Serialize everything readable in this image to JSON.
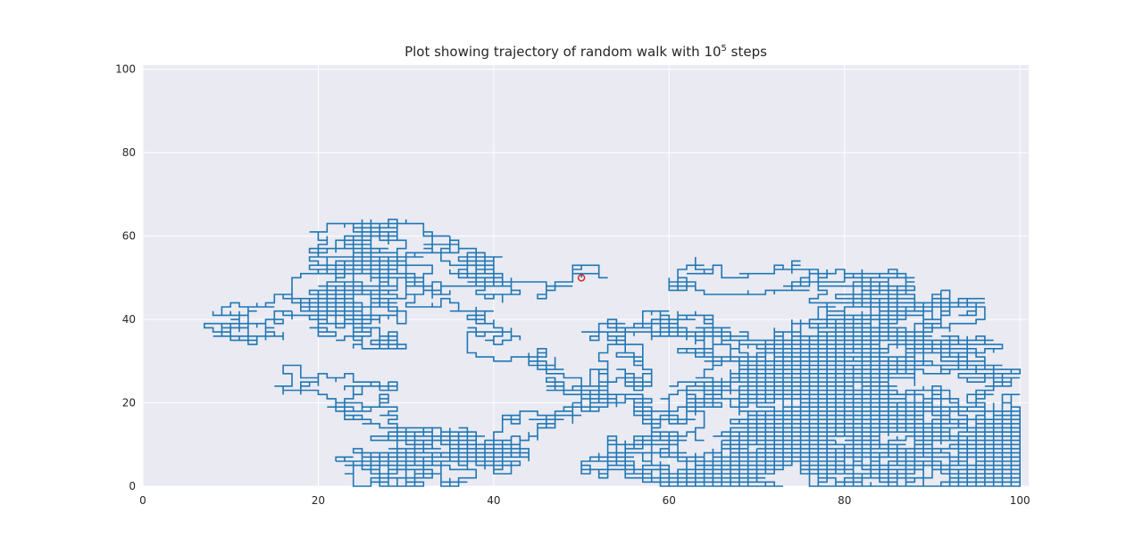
{
  "chart_data": {
    "type": "line",
    "title_prefix": "Plot showing trajectory of random walk with ",
    "title_base": "10",
    "title_exponent": "5",
    "title_suffix": " steps",
    "xlabel": "",
    "ylabel": "",
    "xlim": [
      0,
      101
    ],
    "ylim": [
      0,
      101
    ],
    "xticks": [
      0,
      20,
      40,
      60,
      80,
      100
    ],
    "yticks": [
      0,
      20,
      40,
      60,
      80,
      100
    ],
    "grid": true,
    "steps": 100000,
    "start": [
      50,
      50
    ],
    "series": [
      {
        "color": "#1f77b4",
        "marker_color": "#d62728"
      }
    ],
    "background": "#eaeaf2",
    "grid_color": "#ffffff"
  }
}
